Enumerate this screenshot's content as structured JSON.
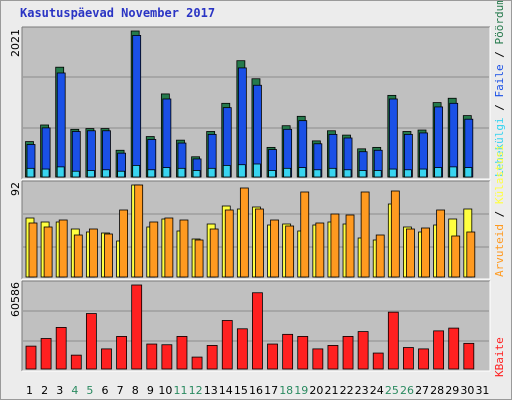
{
  "title": "Kasutuspäevad November 2017",
  "colors": {
    "panel_bg": "#c0c0c0",
    "grid": "#8c8c8c",
    "visits": "#257a4c",
    "pages": "#1a50e6",
    "files": "#38d4f0",
    "hits": "#ff9a20",
    "sessions": "#ffff40",
    "kbytes": "#ff2020",
    "weekend_label": "#2a8a60"
  },
  "chart_data": [
    {
      "type": "bar",
      "panel": "top",
      "ylabel_max": "2021",
      "legend": [
        "Pöördumisi",
        "Faile",
        "Lehekülgi"
      ],
      "categories": [
        "1",
        "2",
        "3",
        "4",
        "5",
        "6",
        "7",
        "8",
        "9",
        "10",
        "11",
        "12",
        "13",
        "14",
        "15",
        "16",
        "17",
        "18",
        "19",
        "20",
        "21",
        "22",
        "23",
        "24",
        "25",
        "26",
        "27",
        "28",
        "29",
        "30",
        "31"
      ],
      "weekend_days": [
        "4",
        "5",
        "11",
        "12",
        "18",
        "19",
        "25",
        "26"
      ],
      "ylim": [
        0,
        2021
      ],
      "series": [
        {
          "name": "Pöördumisi",
          "values": [
            490,
            720,
            1520,
            660,
            670,
            670,
            370,
            2021,
            560,
            1150,
            510,
            280,
            630,
            1020,
            1610,
            1360,
            410,
            710,
            840,
            500,
            640,
            580,
            390,
            410,
            1130,
            630,
            650,
            1030,
            1090,
            850,
            0
          ]
        },
        {
          "name": "Faile",
          "values": [
            450,
            680,
            1440,
            630,
            640,
            640,
            330,
            1960,
            520,
            1080,
            470,
            250,
            590,
            960,
            1510,
            1270,
            380,
            660,
            780,
            460,
            590,
            540,
            350,
            370,
            1080,
            590,
            610,
            970,
            1020,
            800,
            0
          ]
        },
        {
          "name": "Lehekülgi",
          "values": [
            120,
            110,
            140,
            80,
            90,
            100,
            80,
            160,
            100,
            130,
            120,
            90,
            120,
            160,
            170,
            180,
            90,
            120,
            130,
            100,
            120,
            100,
            90,
            90,
            110,
            100,
            110,
            130,
            140,
            130,
            0
          ]
        }
      ]
    },
    {
      "type": "bar",
      "panel": "middle",
      "ylabel_max": "92",
      "legend": [
        "Külastusi",
        "Arvuteid"
      ],
      "ylim": [
        0,
        92
      ],
      "series": [
        {
          "name": "Külastusi",
          "values": [
            59,
            55,
            55,
            48,
            45,
            44,
            36,
            92,
            50,
            58,
            46,
            38,
            53,
            71,
            68,
            70,
            52,
            53,
            46,
            52,
            55,
            53,
            39,
            37,
            73,
            50,
            45,
            52,
            58,
            68,
            0
          ]
        },
        {
          "name": "Arvuteid",
          "values": [
            54,
            50,
            57,
            42,
            48,
            43,
            67,
            92,
            55,
            59,
            57,
            37,
            48,
            67,
            89,
            68,
            57,
            51,
            85,
            54,
            63,
            62,
            85,
            42,
            86,
            48,
            49,
            67,
            41,
            45,
            0
          ]
        }
      ]
    },
    {
      "type": "bar",
      "panel": "bottom",
      "ylabel_max": "60586",
      "legend": [
        "KBaite"
      ],
      "ylim": [
        0,
        60586
      ],
      "series": [
        {
          "name": "KBaite",
          "values": [
            16500,
            22000,
            30000,
            10000,
            40000,
            14500,
            23500,
            60586,
            18000,
            17500,
            23500,
            8600,
            17000,
            35000,
            29000,
            55000,
            18000,
            25000,
            23500,
            14500,
            17000,
            23500,
            27000,
            11500,
            41000,
            15500,
            14500,
            27500,
            29500,
            18500,
            0
          ]
        }
      ]
    }
  ]
}
